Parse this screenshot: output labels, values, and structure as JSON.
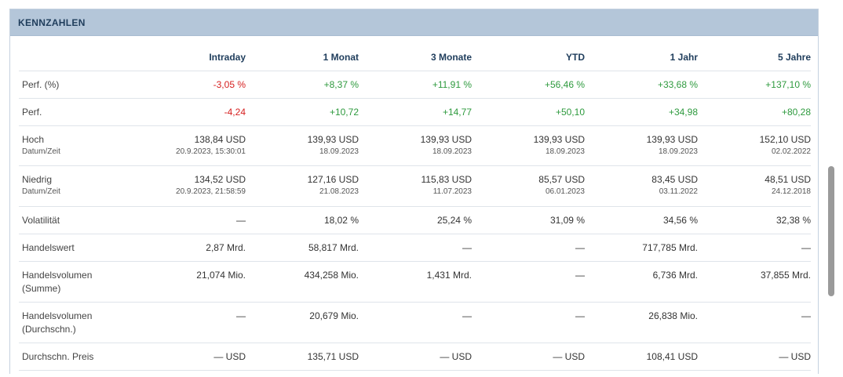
{
  "panel": {
    "title": "KENNZAHLEN"
  },
  "columns": [
    "",
    "Intraday",
    "1 Monat",
    "3 Monate",
    "YTD",
    "1 Jahr",
    "5 Jahre"
  ],
  "rows": {
    "perf_pct": {
      "label": "Perf. (%)",
      "values": [
        "-3,05 %",
        "+8,37 %",
        "+11,91 %",
        "+56,46 %",
        "+33,68 %",
        "+137,10 %"
      ]
    },
    "perf": {
      "label": "Perf.",
      "values": [
        "-4,24",
        "+10,72",
        "+14,77",
        "+50,10",
        "+34,98",
        "+80,28"
      ]
    },
    "hoch": {
      "label": "Hoch",
      "sublabel": "Datum/Zeit",
      "values": [
        "138,84 USD",
        "139,93 USD",
        "139,93 USD",
        "139,93 USD",
        "139,93 USD",
        "152,10 USD"
      ],
      "dates": [
        "20.9.2023, 15:30:01",
        "18.09.2023",
        "18.09.2023",
        "18.09.2023",
        "18.09.2023",
        "02.02.2022"
      ]
    },
    "niedrig": {
      "label": "Niedrig",
      "sublabel": "Datum/Zeit",
      "values": [
        "134,52 USD",
        "127,16 USD",
        "115,83 USD",
        "85,57 USD",
        "83,45 USD",
        "48,51 USD"
      ],
      "dates": [
        "20.9.2023, 21:58:59",
        "21.08.2023",
        "11.07.2023",
        "06.01.2023",
        "03.11.2022",
        "24.12.2018"
      ]
    },
    "volatilitaet": {
      "label": "Volatilität",
      "values": [
        "—",
        "18,02 %",
        "25,24 %",
        "31,09 %",
        "34,56 %",
        "32,38 %"
      ]
    },
    "handelswert": {
      "label": "Handelswert",
      "values": [
        "2,87 Mrd.",
        "58,817 Mrd.",
        "—",
        "—",
        "717,785 Mrd.",
        "—"
      ]
    },
    "hv_summe": {
      "label_line1": "Handelsvolumen",
      "label_line2": "(Summe)",
      "values": [
        "21,074 Mio.",
        "434,258 Mio.",
        "1,431 Mrd.",
        "—",
        "6,736 Mrd.",
        "37,855 Mrd."
      ]
    },
    "hv_durchschn": {
      "label_line1": "Handelsvolumen",
      "label_line2": "(Durchschn.)",
      "values": [
        "—",
        "20,679 Mio.",
        "—",
        "—",
        "26,838 Mio.",
        "—"
      ]
    },
    "preis": {
      "label": "Durchschn. Preis",
      "values": [
        "— USD",
        "135,71 USD",
        "— USD",
        "— USD",
        "108,41 USD",
        "— USD"
      ]
    }
  },
  "colors": {
    "negative": "#d62020",
    "positive": "#2e9a3e",
    "header_bg": "#b4c6d9",
    "header_text": "#1f3d5c"
  }
}
